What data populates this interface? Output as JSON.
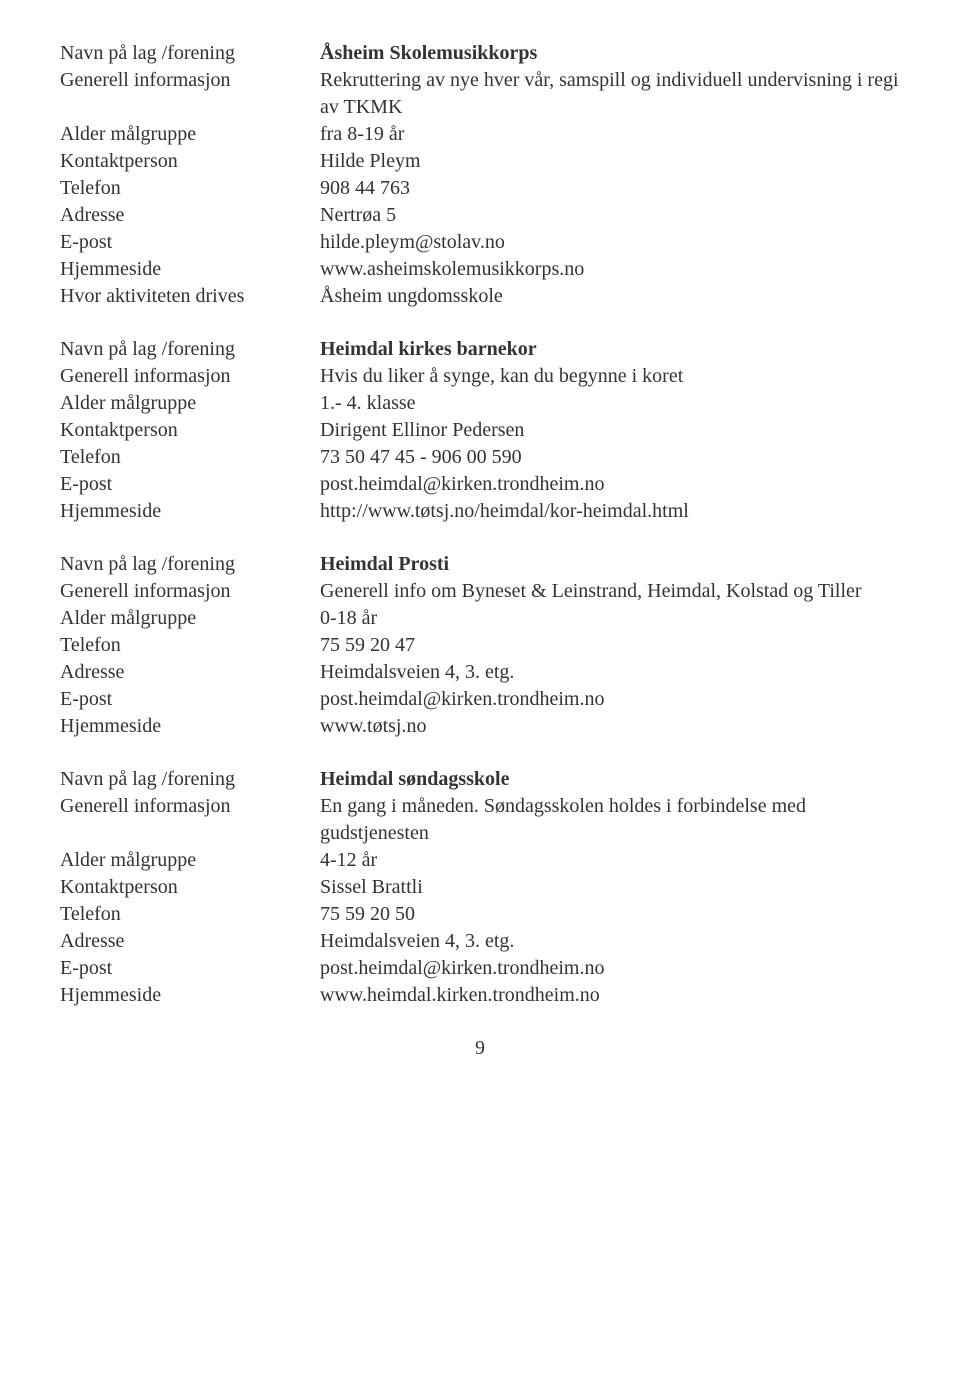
{
  "blocks": [
    {
      "rows": [
        {
          "label": "Navn på lag /forening",
          "value": "Åsheim Skolemusikkorps",
          "bold": true
        },
        {
          "label": "Generell informasjon",
          "value": "Rekruttering av nye hver vår, samspill og individuell undervisning i regi av TKMK"
        },
        {
          "label": "Alder målgruppe",
          "value": "fra 8-19 år"
        },
        {
          "label": "Kontaktperson",
          "value": "Hilde Pleym"
        },
        {
          "label": "Telefon",
          "value": "908 44 763"
        },
        {
          "label": "Adresse",
          "value": "Nertrøa 5"
        },
        {
          "label": "E-post",
          "value": "hilde.pleym@stolav.no"
        },
        {
          "label": "Hjemmeside",
          "value": "www.asheimskolemusikkorps.no"
        },
        {
          "label": "Hvor aktiviteten drives",
          "value": "Åsheim ungdomsskole"
        }
      ]
    },
    {
      "rows": [
        {
          "label": "Navn på lag /forening",
          "value": "Heimdal kirkes barnekor",
          "bold": true
        },
        {
          "label": "Generell informasjon",
          "value": "Hvis du liker å synge, kan du begynne i koret"
        },
        {
          "label": "Alder målgruppe",
          "value": "1.- 4. klasse"
        },
        {
          "label": "Kontaktperson",
          "value": "Dirigent Ellinor Pedersen"
        },
        {
          "label": "Telefon",
          "value": "73 50 47 45 - 906 00 590"
        },
        {
          "label": "E-post",
          "value": "post.heimdal@kirken.trondheim.no"
        },
        {
          "label": "Hjemmeside",
          "value": "http://www.tøtsj.no/heimdal/kor-heimdal.html"
        }
      ]
    },
    {
      "rows": [
        {
          "label": "Navn på lag /forening",
          "value": "Heimdal Prosti",
          "bold": true
        },
        {
          "label": "Generell informasjon",
          "value": "Generell info om Byneset & Leinstrand, Heimdal, Kolstad og Tiller"
        },
        {
          "label": "Alder målgruppe",
          "value": "0-18 år"
        },
        {
          "label": "Telefon",
          "value": "75 59 20 47"
        },
        {
          "label": "Adresse",
          "value": "Heimdalsveien 4, 3. etg."
        },
        {
          "label": "E-post",
          "value": "post.heimdal@kirken.trondheim.no"
        },
        {
          "label": "Hjemmeside",
          "value": "www.tøtsj.no"
        }
      ]
    },
    {
      "rows": [
        {
          "label": "Navn på lag /forening",
          "value": "Heimdal søndagsskole",
          "bold": true
        },
        {
          "label": "Generell informasjon",
          "value": "En gang i måneden. Søndagsskolen holdes i forbindelse med gudstjenesten"
        },
        {
          "label": "Alder målgruppe",
          "value": "4-12 år"
        },
        {
          "label": "Kontaktperson",
          "value": "Sissel Brattli"
        },
        {
          "label": "Telefon",
          "value": "75 59 20 50"
        },
        {
          "label": "Adresse",
          "value": "Heimdalsveien 4, 3. etg."
        },
        {
          "label": "E-post",
          "value": "post.heimdal@kirken.trondheim.no"
        },
        {
          "label": "Hjemmeside",
          "value": "www.heimdal.kirken.trondheim.no"
        }
      ]
    }
  ],
  "page_number": "9"
}
